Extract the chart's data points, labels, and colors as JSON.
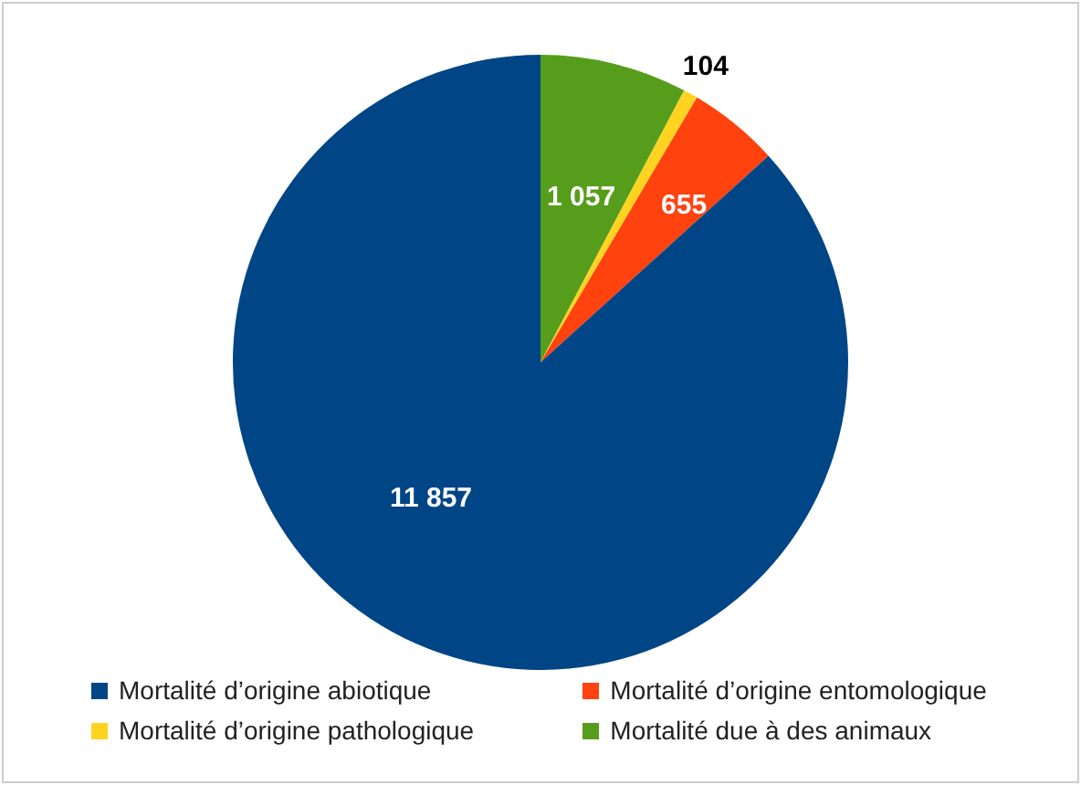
{
  "chart_data": {
    "type": "pie",
    "categories": [
      "Mortalité d’origine abiotique",
      "Mortalité d’origine entomologique",
      "Mortalité d’origine pathologique",
      "Mortalité due à des animaux"
    ],
    "values": [
      11857,
      655,
      104,
      1057
    ],
    "colors": [
      "#004586",
      "#ff420e",
      "#ffd320",
      "#579d1c"
    ],
    "value_labels": [
      "11 857",
      "655",
      "104",
      "1 057"
    ],
    "legend": "bottom"
  }
}
